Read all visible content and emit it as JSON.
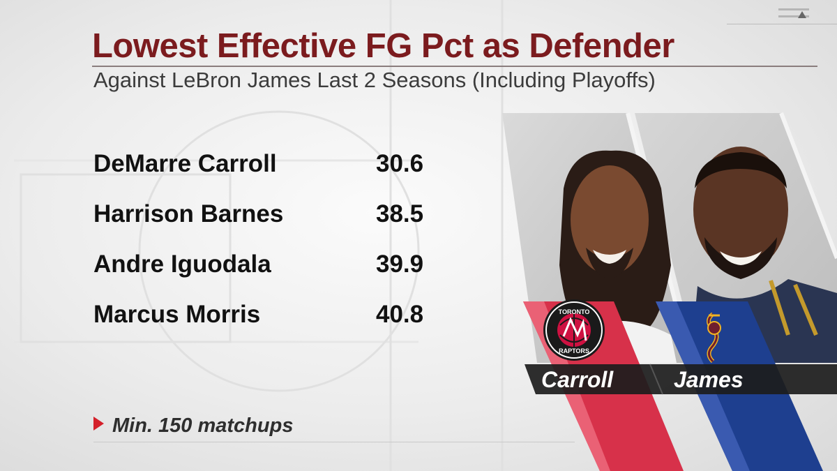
{
  "title": "Lowest Effective FG Pct as Defender",
  "subtitle": "Against LeBron James Last 2 Seasons (Including Playoffs)",
  "rows": [
    {
      "name": "DeMarre Carroll",
      "value": "30.6"
    },
    {
      "name": "Harrison Barnes",
      "value": "38.5"
    },
    {
      "name": "Andre Iguodala",
      "value": "39.9"
    },
    {
      "name": "Marcus Morris",
      "value": "40.8"
    }
  ],
  "footnote": "Min. 150 matchups",
  "players": {
    "left": {
      "label": "Carroll",
      "team_logo_text_top": "TORONTO",
      "team_logo_text_bottom": "RAPTORS",
      "color": "#d7314a"
    },
    "right": {
      "label": "James",
      "color": "#1e3f8f"
    }
  },
  "colors": {
    "title": "#7b1b1e",
    "accent_arrow": "#d4202a"
  }
}
